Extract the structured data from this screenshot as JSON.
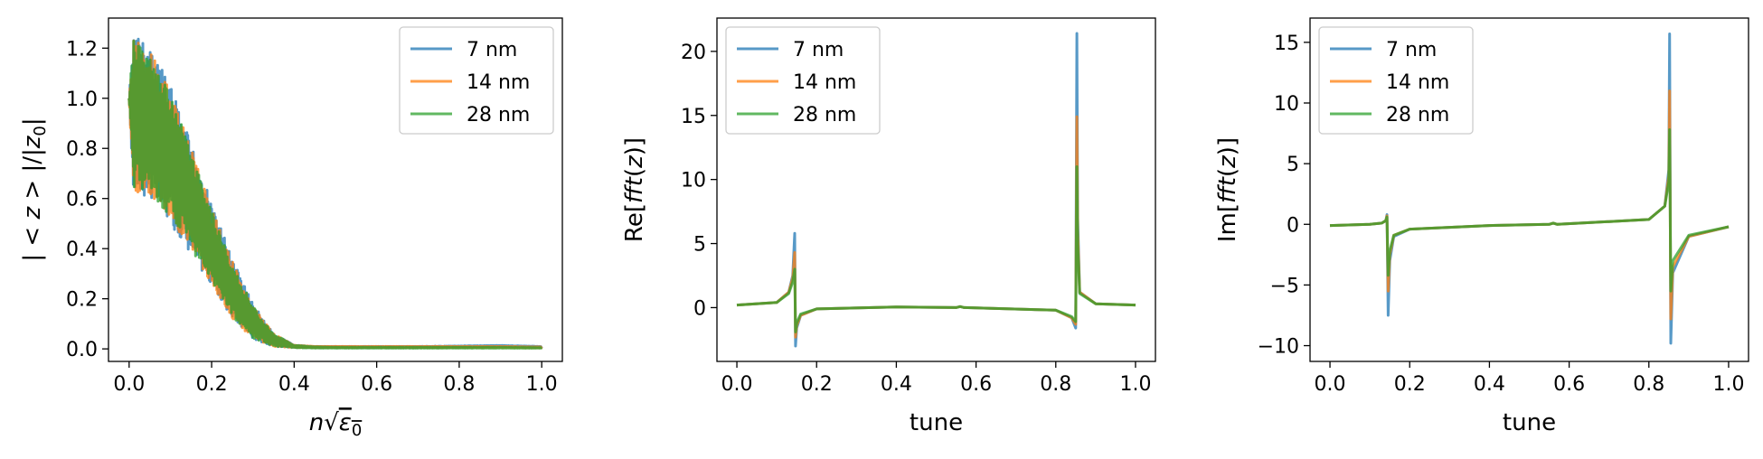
{
  "figure": {
    "series_colors": [
      "#1f77b4",
      "#ff7f0e",
      "#2ca02c"
    ],
    "legend_labels": [
      "7 nm",
      "14 nm",
      "28 nm"
    ]
  },
  "chart_data": [
    {
      "type": "line",
      "title": "",
      "xlabel": "n√ε0",
      "ylabel": "|<z>|/|z0|",
      "xlim": [
        -0.05,
        1.05
      ],
      "ylim": [
        -0.05,
        1.32
      ],
      "xticks": [
        "0.0",
        "0.2",
        "0.4",
        "0.6",
        "0.8",
        "1.0"
      ],
      "yticks": [
        "0.0",
        "0.2",
        "0.4",
        "0.6",
        "0.8",
        "1.0",
        "1.2"
      ],
      "legend": "top-right",
      "series": [
        {
          "name": "7 nm",
          "color": "#1f77b4",
          "envelope": {
            "x": [
              0,
              0.01,
              0.05,
              0.1,
              0.15,
              0.2,
              0.25,
              0.3,
              0.35,
              0.4,
              0.45,
              0.5,
              0.6,
              0.7,
              0.8,
              0.9,
              1.0
            ],
            "upper": [
              1.0,
              1.25,
              1.22,
              1.05,
              0.82,
              0.58,
              0.36,
              0.18,
              0.06,
              0.015,
              0.01,
              0.01,
              0.01,
              0.01,
              0.012,
              0.014,
              0.01
            ],
            "lower": [
              1.0,
              0.62,
              0.6,
              0.5,
              0.38,
              0.25,
              0.12,
              0.04,
              0.01,
              0.005,
              0.005,
              0.005,
              0.005,
              0.005,
              0.006,
              0.01,
              0.005
            ]
          }
        },
        {
          "name": "14 nm",
          "color": "#ff7f0e",
          "envelope": {
            "x": [
              0,
              0.01,
              0.05,
              0.1,
              0.15,
              0.2,
              0.25,
              0.3,
              0.35,
              0.4,
              0.45,
              0.5,
              0.6,
              0.7,
              0.8,
              0.9,
              1.0
            ],
            "upper": [
              1.0,
              1.24,
              1.2,
              1.03,
              0.8,
              0.56,
              0.35,
              0.17,
              0.06,
              0.015,
              0.01,
              0.01,
              0.01,
              0.01,
              0.01,
              0.01,
              0.008
            ],
            "lower": [
              1.0,
              0.63,
              0.61,
              0.51,
              0.39,
              0.26,
              0.12,
              0.04,
              0.01,
              0.005,
              0.005,
              0.005,
              0.005,
              0.005,
              0.005,
              0.005,
              0.004
            ]
          }
        },
        {
          "name": "28 nm",
          "color": "#2ca02c",
          "envelope": {
            "x": [
              0,
              0.01,
              0.05,
              0.1,
              0.15,
              0.2,
              0.25,
              0.3,
              0.35,
              0.4,
              0.45,
              0.5,
              0.6,
              0.7,
              0.8,
              0.9,
              1.0
            ],
            "upper": [
              1.0,
              1.23,
              1.19,
              1.02,
              0.79,
              0.55,
              0.34,
              0.17,
              0.06,
              0.015,
              0.008,
              0.006,
              0.006,
              0.006,
              0.006,
              0.006,
              0.005
            ],
            "lower": [
              1.0,
              0.64,
              0.62,
              0.52,
              0.4,
              0.27,
              0.13,
              0.04,
              0.01,
              0.004,
              0.003,
              0.003,
              0.003,
              0.003,
              0.003,
              0.003,
              0.003
            ]
          }
        }
      ]
    },
    {
      "type": "line",
      "title": "",
      "xlabel": "tune",
      "ylabel": "Re[fft(z)]",
      "xlim": [
        -0.05,
        1.05
      ],
      "ylim": [
        -4.2,
        22.6
      ],
      "xticks": [
        "0.0",
        "0.2",
        "0.4",
        "0.6",
        "0.8",
        "1.0"
      ],
      "yticks": [
        "0",
        "5",
        "10",
        "15",
        "20"
      ],
      "legend": "top-left",
      "series": [
        {
          "name": "7 nm",
          "color": "#1f77b4",
          "x": [
            0,
            0.1,
            0.13,
            0.14,
            0.145,
            0.147,
            0.15,
            0.16,
            0.2,
            0.4,
            0.55,
            0.56,
            0.57,
            0.8,
            0.84,
            0.85,
            0.853,
            0.855,
            0.86,
            0.9,
            1.0
          ],
          "y": [
            0.2,
            0.4,
            1.2,
            2.5,
            5.8,
            -3.0,
            -1.6,
            -0.6,
            -0.1,
            0.05,
            0.0,
            0.08,
            0.0,
            -0.2,
            -0.8,
            -1.6,
            21.4,
            7.0,
            1.2,
            0.3,
            0.2
          ]
        },
        {
          "name": "14 nm",
          "color": "#ff7f0e",
          "x": [
            0,
            0.1,
            0.13,
            0.14,
            0.145,
            0.147,
            0.15,
            0.16,
            0.2,
            0.4,
            0.55,
            0.56,
            0.57,
            0.8,
            0.84,
            0.85,
            0.853,
            0.855,
            0.86,
            0.9,
            1.0
          ],
          "y": [
            0.2,
            0.4,
            1.2,
            2.3,
            4.3,
            -2.3,
            -1.4,
            -0.6,
            -0.1,
            0.05,
            0.0,
            0.08,
            0.0,
            -0.2,
            -0.8,
            -1.3,
            14.9,
            6.0,
            1.2,
            0.3,
            0.2
          ]
        },
        {
          "name": "28 nm",
          "color": "#2ca02c",
          "x": [
            0,
            0.1,
            0.13,
            0.14,
            0.145,
            0.147,
            0.15,
            0.16,
            0.2,
            0.4,
            0.55,
            0.56,
            0.57,
            0.8,
            0.84,
            0.85,
            0.853,
            0.855,
            0.86,
            0.9,
            1.0
          ],
          "y": [
            0.2,
            0.4,
            1.1,
            2.0,
            3.0,
            -1.9,
            -1.2,
            -0.5,
            -0.1,
            0.05,
            0.0,
            0.08,
            0.0,
            -0.2,
            -0.7,
            -1.1,
            11.0,
            5.0,
            1.1,
            0.3,
            0.2
          ]
        }
      ]
    },
    {
      "type": "line",
      "title": "",
      "xlabel": "tune",
      "ylabel": "Im[fft(z)]",
      "xlim": [
        -0.05,
        1.05
      ],
      "ylim": [
        -11.3,
        17.0
      ],
      "xticks": [
        "0.0",
        "0.2",
        "0.4",
        "0.6",
        "0.8",
        "1.0"
      ],
      "yticks": [
        "−10",
        "−5",
        "0",
        "5",
        "10",
        "15"
      ],
      "legend": "top-left",
      "series": [
        {
          "name": "7 nm",
          "color": "#1f77b4",
          "x": [
            0,
            0.1,
            0.13,
            0.14,
            0.143,
            0.146,
            0.15,
            0.16,
            0.2,
            0.4,
            0.55,
            0.56,
            0.57,
            0.8,
            0.84,
            0.85,
            0.852,
            0.855,
            0.86,
            0.9,
            1.0
          ],
          "y": [
            -0.1,
            0.0,
            0.1,
            0.3,
            0.8,
            -7.5,
            -3.0,
            -1.0,
            -0.4,
            -0.1,
            0.0,
            0.1,
            0.0,
            0.4,
            1.5,
            4.5,
            15.7,
            -9.8,
            -4.0,
            -1.0,
            -0.2
          ]
        },
        {
          "name": "14 nm",
          "color": "#ff7f0e",
          "x": [
            0,
            0.1,
            0.13,
            0.14,
            0.143,
            0.146,
            0.15,
            0.16,
            0.2,
            0.4,
            0.55,
            0.56,
            0.57,
            0.8,
            0.84,
            0.85,
            0.852,
            0.855,
            0.86,
            0.9,
            1.0
          ],
          "y": [
            -0.1,
            0.0,
            0.1,
            0.3,
            0.7,
            -5.5,
            -2.5,
            -0.9,
            -0.4,
            -0.1,
            0.0,
            0.1,
            0.0,
            0.4,
            1.5,
            4.0,
            11.0,
            -7.8,
            -3.5,
            -1.0,
            -0.2
          ]
        },
        {
          "name": "28 nm",
          "color": "#2ca02c",
          "x": [
            0,
            0.1,
            0.13,
            0.14,
            0.143,
            0.146,
            0.15,
            0.16,
            0.2,
            0.4,
            0.55,
            0.56,
            0.57,
            0.8,
            0.84,
            0.85,
            0.852,
            0.855,
            0.86,
            0.9,
            1.0
          ],
          "y": [
            -0.1,
            0.0,
            0.1,
            0.3,
            0.6,
            -4.2,
            -2.2,
            -0.9,
            -0.4,
            -0.1,
            0.0,
            0.1,
            0.0,
            0.4,
            1.5,
            3.5,
            7.8,
            -5.5,
            -3.0,
            -0.9,
            -0.2
          ]
        }
      ]
    }
  ]
}
